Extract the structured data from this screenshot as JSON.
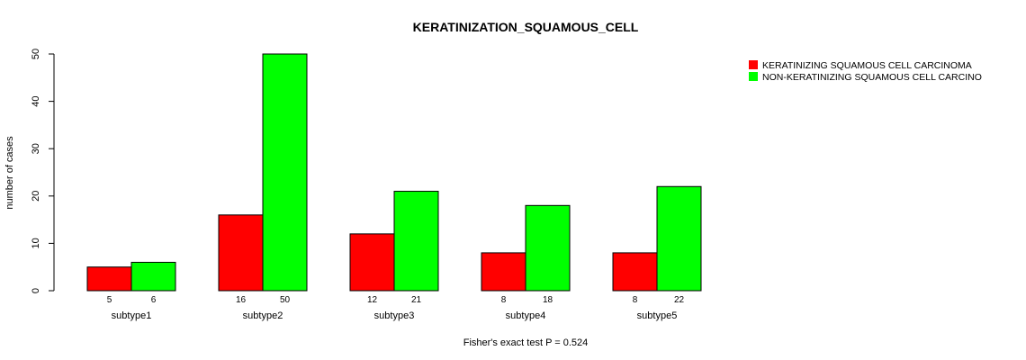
{
  "chart_data": {
    "type": "bar",
    "title": "KERATINIZATION_SQUAMOUS_CELL",
    "xlabel": "Fisher's exact test P = 0.524",
    "ylabel": "number of cases",
    "ylim": [
      0,
      50
    ],
    "yticks": [
      0,
      10,
      20,
      30,
      40,
      50
    ],
    "categories": [
      "subtype1",
      "subtype2",
      "subtype3",
      "subtype4",
      "subtype5"
    ],
    "series": [
      {
        "name": "KERATINIZING SQUAMOUS CELL CARCINOMA",
        "color": "#ff0000",
        "values": [
          5,
          16,
          12,
          8,
          8
        ]
      },
      {
        "name": "NON-KERATINIZING SQUAMOUS CELL CARCINO",
        "color": "#00ff00",
        "values": [
          6,
          50,
          21,
          18,
          22
        ]
      }
    ],
    "legend_position": "top-right",
    "grid": false
  }
}
